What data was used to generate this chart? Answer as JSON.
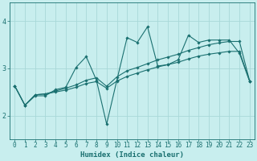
{
  "xlabel": "Humidex (Indice chaleur)",
  "bg_color": "#c8eeee",
  "grid_color": "#a8d8d8",
  "line_color": "#1a7070",
  "spine_color": "#1a7070",
  "x_ticks": [
    0,
    1,
    2,
    3,
    4,
    5,
    6,
    7,
    8,
    9,
    10,
    11,
    12,
    13,
    14,
    15,
    16,
    17,
    18,
    19,
    20,
    21,
    22,
    23
  ],
  "y_ticks": [
    2,
    3,
    4
  ],
  "ylim": [
    1.5,
    4.4
  ],
  "xlim": [
    -0.5,
    23.5
  ],
  "line1_y": [
    2.63,
    2.22,
    2.42,
    2.42,
    2.55,
    2.6,
    3.02,
    3.25,
    2.75,
    1.82,
    2.75,
    3.65,
    3.55,
    3.88,
    3.05,
    3.08,
    3.18,
    3.7,
    3.55,
    3.6,
    3.6,
    3.6,
    3.32,
    2.72
  ],
  "line2_y": [
    2.63,
    2.22,
    2.44,
    2.46,
    2.52,
    2.58,
    2.65,
    2.75,
    2.8,
    2.62,
    2.82,
    2.95,
    3.02,
    3.1,
    3.18,
    3.24,
    3.3,
    3.38,
    3.44,
    3.5,
    3.54,
    3.57,
    3.57,
    2.73
  ],
  "line3_y": [
    2.63,
    2.22,
    2.44,
    2.46,
    2.5,
    2.54,
    2.6,
    2.68,
    2.72,
    2.58,
    2.73,
    2.83,
    2.9,
    2.97,
    3.03,
    3.08,
    3.13,
    3.2,
    3.26,
    3.3,
    3.33,
    3.36,
    3.36,
    2.73
  ],
  "tick_fontsize": 5.5,
  "xlabel_fontsize": 6.5,
  "marker": "D",
  "markersize": 1.8,
  "linewidth": 0.8
}
